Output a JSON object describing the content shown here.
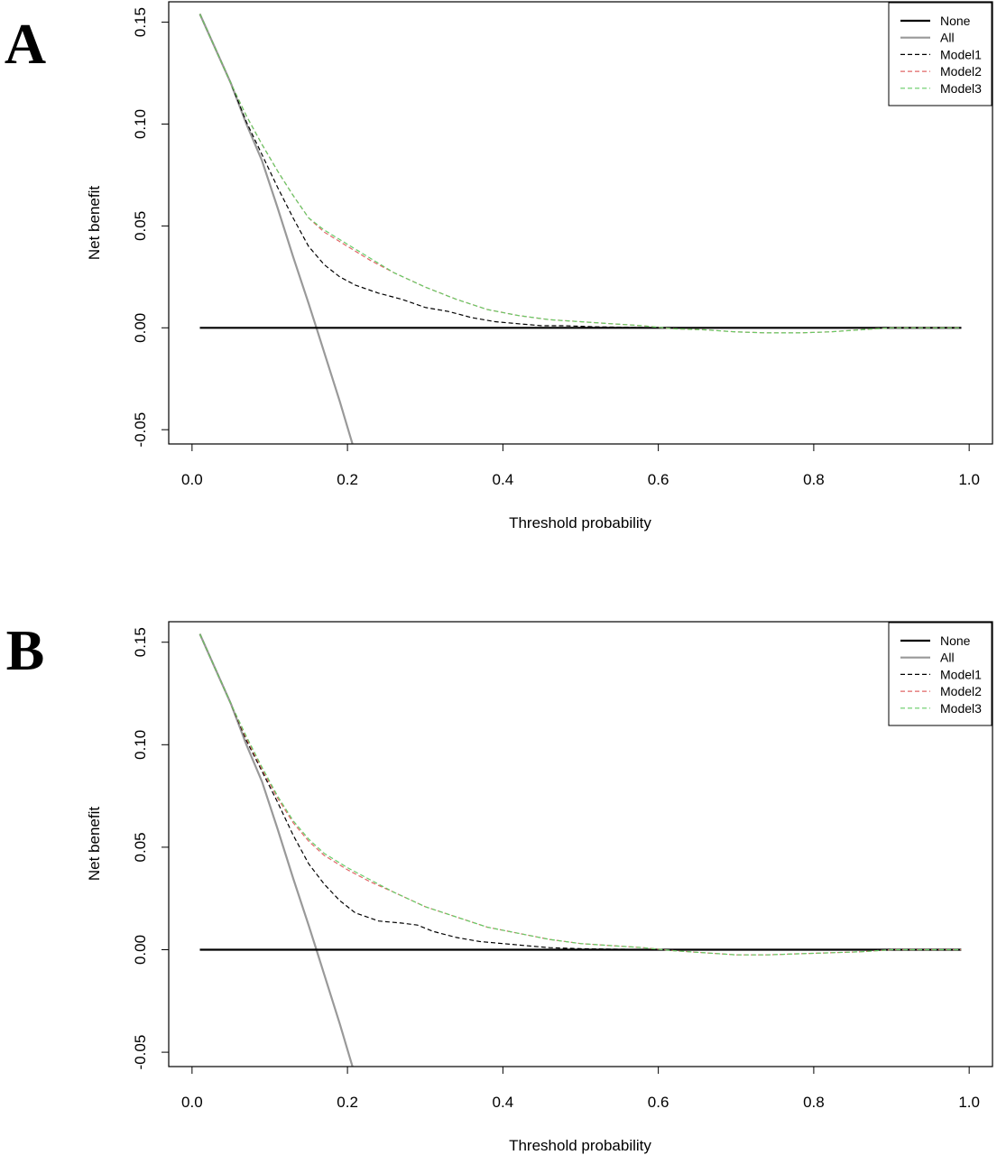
{
  "chart_data": [
    {
      "panel": "A",
      "type": "line",
      "xlabel": "Threshold probability",
      "ylabel": "Net benefit",
      "xlim": [
        0.0,
        1.0
      ],
      "ylim": [
        -0.057,
        0.16
      ],
      "xticks": [
        "0.0",
        "0.2",
        "0.4",
        "0.6",
        "0.8",
        "1.0"
      ],
      "yticks": [
        "-0.05",
        "0.00",
        "0.05",
        "0.10",
        "0.15"
      ],
      "grid": false,
      "legend": {
        "position": "top-right",
        "entries": [
          "None",
          "All",
          "Model1",
          "Model2",
          "Model3"
        ]
      },
      "series": [
        {
          "name": "None",
          "color": "#000000",
          "style": "solid",
          "x": [
            0.01,
            0.99
          ],
          "y": [
            0.0,
            0.0
          ]
        },
        {
          "name": "All",
          "color": "#999999",
          "style": "solid",
          "x": [
            0.01,
            0.03,
            0.05,
            0.07,
            0.09,
            0.11,
            0.13,
            0.15,
            0.16,
            0.17,
            0.19,
            0.208
          ],
          "y": [
            0.154,
            0.137,
            0.12,
            0.1,
            0.082,
            0.059,
            0.035,
            0.012,
            0.0,
            -0.012,
            -0.036,
            -0.059
          ]
        },
        {
          "name": "Model1",
          "color": "#000000",
          "style": "dashed",
          "x": [
            0.01,
            0.03,
            0.05,
            0.07,
            0.09,
            0.11,
            0.13,
            0.15,
            0.17,
            0.19,
            0.21,
            0.24,
            0.27,
            0.3,
            0.33,
            0.36,
            0.39,
            0.42,
            0.45,
            0.48,
            0.52,
            0.6,
            0.8,
            0.99
          ],
          "y": [
            0.154,
            0.137,
            0.12,
            0.101,
            0.085,
            0.069,
            0.054,
            0.04,
            0.031,
            0.025,
            0.021,
            0.017,
            0.014,
            0.01,
            0.008,
            0.005,
            0.003,
            0.002,
            0.001,
            0.001,
            0.0005,
            0.0,
            0.0,
            0.0
          ]
        },
        {
          "name": "Model2",
          "color": "#e06666",
          "style": "dashed",
          "x": [
            0.01,
            0.03,
            0.05,
            0.07,
            0.09,
            0.11,
            0.13,
            0.15,
            0.17,
            0.2,
            0.23,
            0.26,
            0.3,
            0.34,
            0.38,
            0.42,
            0.46,
            0.5,
            0.54,
            0.58,
            0.62,
            0.66,
            0.7,
            0.74,
            0.78,
            0.82,
            0.86,
            0.9,
            0.95,
            0.99
          ],
          "y": [
            0.154,
            0.137,
            0.12,
            0.104,
            0.09,
            0.077,
            0.065,
            0.054,
            0.047,
            0.04,
            0.033,
            0.027,
            0.02,
            0.014,
            0.009,
            0.006,
            0.004,
            0.003,
            0.002,
            0.001,
            -0.0005,
            -0.001,
            -0.002,
            -0.0025,
            -0.0025,
            -0.002,
            -0.001,
            0.0,
            0.0,
            0.0
          ]
        },
        {
          "name": "Model3",
          "color": "#66cc66",
          "style": "dashed",
          "x": [
            0.01,
            0.03,
            0.05,
            0.07,
            0.09,
            0.11,
            0.13,
            0.15,
            0.17,
            0.2,
            0.23,
            0.26,
            0.3,
            0.34,
            0.38,
            0.42,
            0.46,
            0.5,
            0.54,
            0.58,
            0.62,
            0.66,
            0.7,
            0.74,
            0.78,
            0.82,
            0.86,
            0.9,
            0.95,
            0.99
          ],
          "y": [
            0.154,
            0.137,
            0.12,
            0.104,
            0.09,
            0.077,
            0.065,
            0.054,
            0.048,
            0.041,
            0.034,
            0.027,
            0.02,
            0.014,
            0.009,
            0.006,
            0.004,
            0.003,
            0.002,
            0.001,
            -0.0005,
            -0.001,
            -0.002,
            -0.0025,
            -0.0025,
            -0.002,
            -0.001,
            0.0,
            0.0,
            0.0
          ]
        }
      ]
    },
    {
      "panel": "B",
      "type": "line",
      "xlabel": "Threshold probability",
      "ylabel": "Net benefit",
      "xlim": [
        0.0,
        1.0
      ],
      "ylim": [
        -0.057,
        0.16
      ],
      "xticks": [
        "0.0",
        "0.2",
        "0.4",
        "0.6",
        "0.8",
        "1.0"
      ],
      "yticks": [
        "-0.05",
        "0.00",
        "0.05",
        "0.10",
        "0.15"
      ],
      "grid": false,
      "legend": {
        "position": "top-right",
        "entries": [
          "None",
          "All",
          "Model1",
          "Model2",
          "Model3"
        ]
      },
      "series": [
        {
          "name": "None",
          "color": "#000000",
          "style": "solid",
          "x": [
            0.01,
            0.99
          ],
          "y": [
            0.0,
            0.0
          ]
        },
        {
          "name": "All",
          "color": "#999999",
          "style": "solid",
          "x": [
            0.01,
            0.03,
            0.05,
            0.07,
            0.09,
            0.11,
            0.13,
            0.15,
            0.16,
            0.17,
            0.19,
            0.208
          ],
          "y": [
            0.154,
            0.137,
            0.12,
            0.1,
            0.082,
            0.059,
            0.035,
            0.012,
            0.0,
            -0.012,
            -0.036,
            -0.059
          ]
        },
        {
          "name": "Model1",
          "color": "#000000",
          "style": "dashed",
          "x": [
            0.01,
            0.03,
            0.05,
            0.07,
            0.09,
            0.11,
            0.13,
            0.15,
            0.17,
            0.19,
            0.21,
            0.24,
            0.27,
            0.29,
            0.31,
            0.34,
            0.37,
            0.4,
            0.43,
            0.46,
            0.5,
            0.6,
            0.8,
            0.99
          ],
          "y": [
            0.154,
            0.137,
            0.12,
            0.102,
            0.087,
            0.072,
            0.056,
            0.042,
            0.032,
            0.024,
            0.018,
            0.014,
            0.013,
            0.012,
            0.009,
            0.006,
            0.004,
            0.003,
            0.002,
            0.001,
            0.0005,
            0.0,
            0.0,
            0.0
          ]
        },
        {
          "name": "Model2",
          "color": "#e06666",
          "style": "dashed",
          "x": [
            0.01,
            0.03,
            0.05,
            0.07,
            0.09,
            0.11,
            0.13,
            0.15,
            0.17,
            0.2,
            0.23,
            0.26,
            0.3,
            0.34,
            0.38,
            0.42,
            0.46,
            0.5,
            0.54,
            0.58,
            0.62,
            0.66,
            0.7,
            0.74,
            0.78,
            0.82,
            0.86,
            0.9,
            0.95,
            0.99
          ],
          "y": [
            0.154,
            0.137,
            0.12,
            0.103,
            0.088,
            0.074,
            0.062,
            0.053,
            0.046,
            0.039,
            0.033,
            0.028,
            0.021,
            0.016,
            0.011,
            0.008,
            0.005,
            0.003,
            0.002,
            0.001,
            -0.0005,
            -0.0015,
            -0.0025,
            -0.0025,
            -0.002,
            -0.0015,
            -0.001,
            0.0,
            0.0,
            0.0
          ]
        },
        {
          "name": "Model3",
          "color": "#66cc66",
          "style": "dashed",
          "x": [
            0.01,
            0.03,
            0.05,
            0.07,
            0.09,
            0.11,
            0.13,
            0.15,
            0.17,
            0.2,
            0.23,
            0.26,
            0.3,
            0.34,
            0.38,
            0.42,
            0.46,
            0.5,
            0.54,
            0.58,
            0.62,
            0.66,
            0.7,
            0.74,
            0.78,
            0.82,
            0.86,
            0.9,
            0.95,
            0.99
          ],
          "y": [
            0.154,
            0.137,
            0.12,
            0.104,
            0.089,
            0.075,
            0.063,
            0.054,
            0.047,
            0.04,
            0.034,
            0.028,
            0.021,
            0.016,
            0.011,
            0.008,
            0.005,
            0.003,
            0.002,
            0.001,
            -0.0005,
            -0.0015,
            -0.0025,
            -0.0025,
            -0.002,
            -0.0015,
            -0.001,
            0.0,
            0.0,
            0.0
          ]
        }
      ]
    }
  ]
}
